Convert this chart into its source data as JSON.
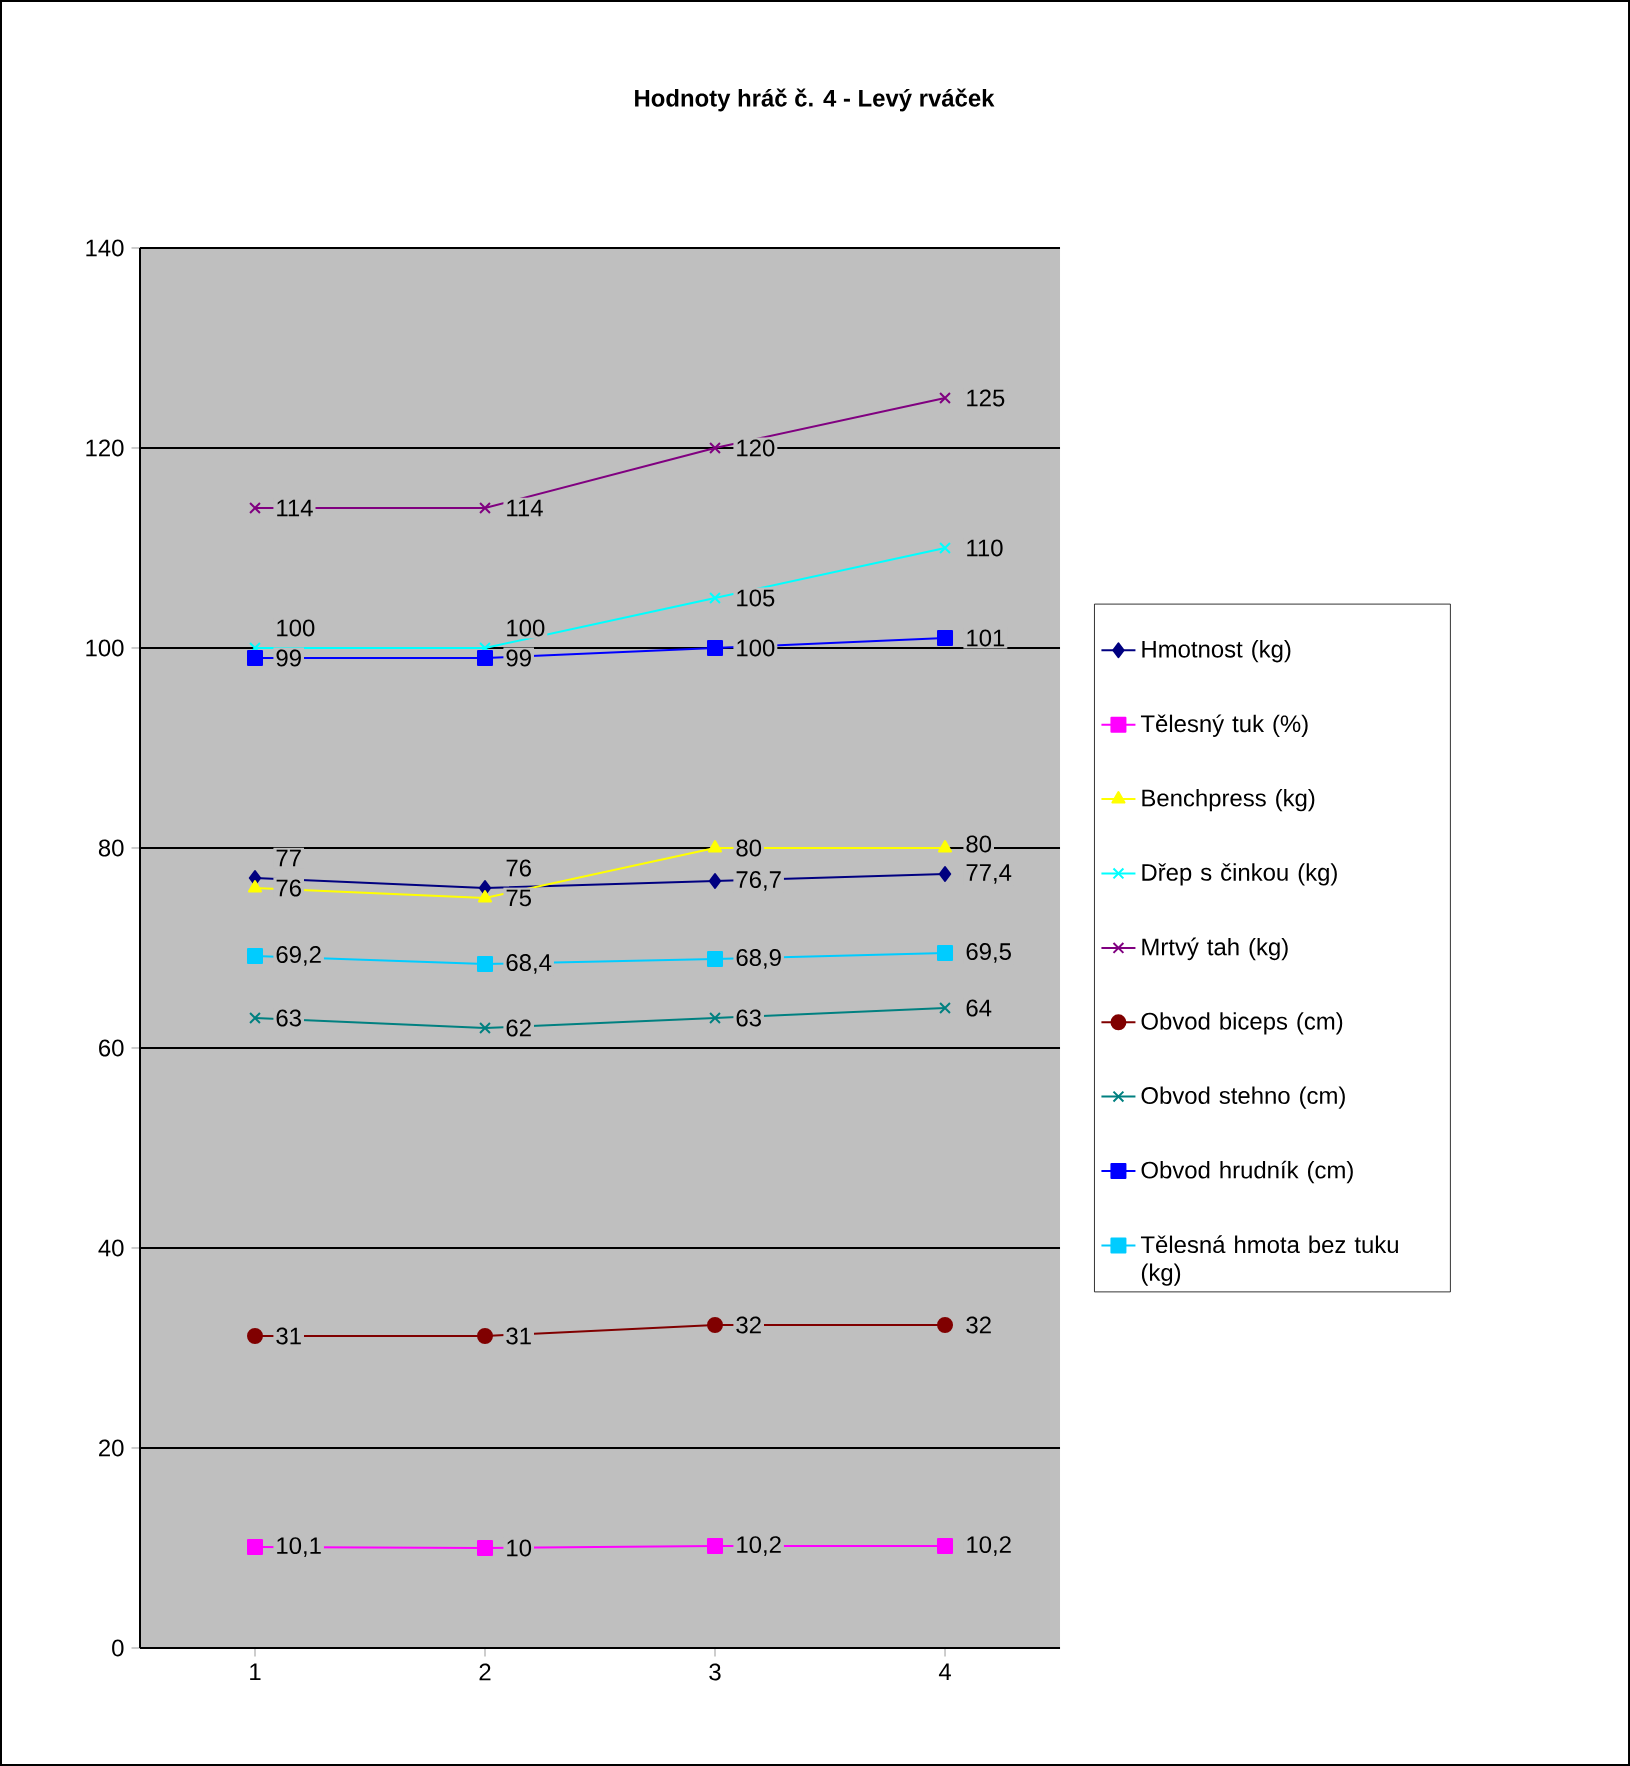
{
  "chart_data": {
    "type": "line",
    "title": "Hodnoty hráč č. 4 - Levý rváček",
    "categories": [
      "1",
      "2",
      "3",
      "4"
    ],
    "series": [
      {
        "name": "Hmotnost (kg)",
        "color": "#000080",
        "marker": "diamond",
        "values": [
          77,
          76,
          76.7,
          77.4
        ],
        "value_labels": [
          "77",
          "76",
          "76,7",
          "77,4"
        ]
      },
      {
        "name": "Tělesný tuk (%)",
        "color": "#ff00ff",
        "marker": "square",
        "values": [
          10.1,
          10,
          10.2,
          10.2
        ],
        "value_labels": [
          "10,1",
          "10",
          "10,2",
          "10,2"
        ]
      },
      {
        "name": "Benchpress (kg)",
        "color": "#ffff00",
        "marker": "triangle",
        "values": [
          76,
          75,
          80,
          80
        ],
        "value_labels": [
          "76",
          "75",
          "80",
          "80"
        ]
      },
      {
        "name": "Dřep s činkou (kg)",
        "color": "#00ffff",
        "marker": "cross",
        "values": [
          100,
          100,
          105,
          110
        ],
        "value_labels": [
          "100",
          "100",
          "105",
          "110"
        ]
      },
      {
        "name": "Mrtvý tah (kg)",
        "color": "#800080",
        "marker": "cross",
        "values": [
          114,
          114,
          120,
          125
        ],
        "value_labels": [
          "114",
          "114",
          "120",
          "125"
        ]
      },
      {
        "name": "Obvod biceps (cm)",
        "color": "#800000",
        "marker": "circle",
        "values": [
          31.2,
          31.2,
          32.3,
          32.3
        ],
        "value_labels": [
          "31",
          "31",
          "32",
          "32"
        ]
      },
      {
        "name": "Obvod stehno (cm)",
        "color": "#008080",
        "marker": "cross",
        "values": [
          63,
          62,
          63,
          64
        ],
        "value_labels": [
          "63",
          "62",
          "63",
          "64"
        ]
      },
      {
        "name": "Obvod hrudník (cm)",
        "color": "#0000ff",
        "marker": "square",
        "values": [
          99,
          99,
          100,
          101
        ],
        "value_labels": [
          "99",
          "99",
          "100",
          "101"
        ]
      },
      {
        "name": "Tělesná hmota bez tuku (kg)",
        "color": "#00ccff",
        "marker": "square",
        "values": [
          69.2,
          68.4,
          68.9,
          69.5
        ],
        "value_labels": [
          "69,2",
          "68,4",
          "68,9",
          "69,5"
        ]
      }
    ],
    "ylim": [
      0,
      140
    ],
    "yticks": [
      0,
      20,
      40,
      60,
      80,
      100,
      120,
      140
    ],
    "grid": "y",
    "legend": "right",
    "line_style": "solid"
  }
}
